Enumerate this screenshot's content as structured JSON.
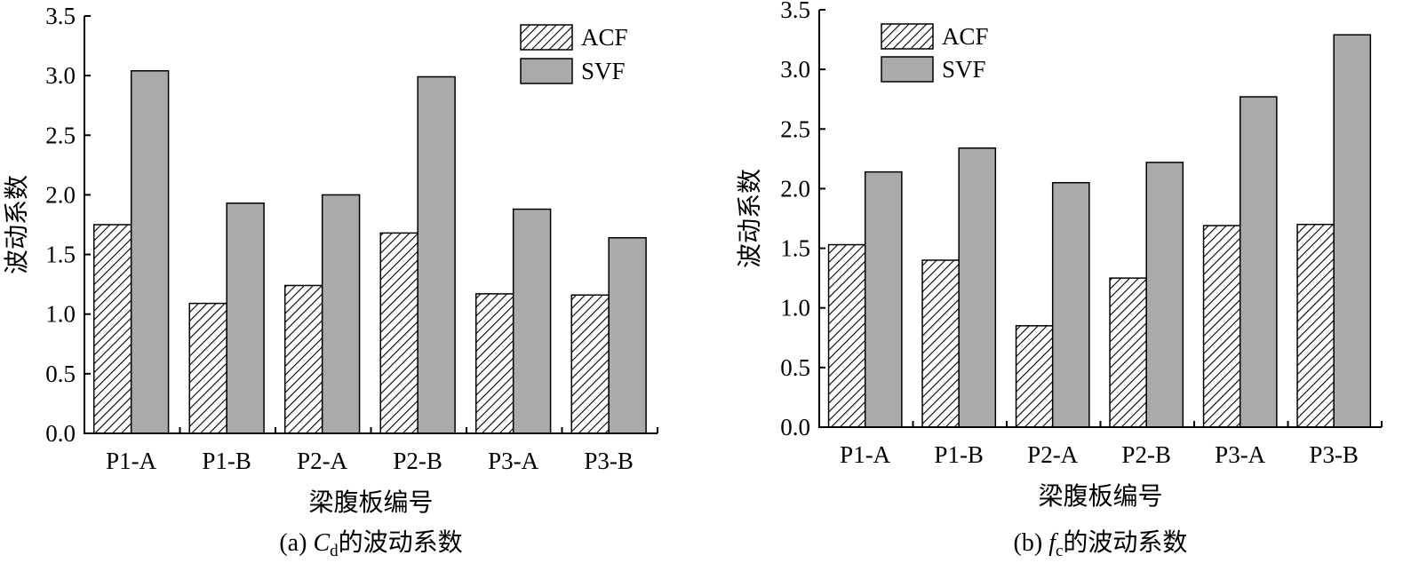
{
  "chart_data": [
    {
      "type": "bar",
      "panel": "a",
      "categories": [
        "P1-A",
        "P1-B",
        "P2-A",
        "P2-B",
        "P3-A",
        "P3-B"
      ],
      "series": [
        {
          "name": "ACF",
          "values": [
            1.75,
            1.09,
            1.24,
            1.68,
            1.17,
            1.16
          ]
        },
        {
          "name": "SVF",
          "values": [
            3.04,
            1.93,
            2.0,
            2.99,
            1.88,
            1.64
          ]
        }
      ],
      "ylim": [
        0,
        3.5
      ],
      "yticks": [
        "0.0",
        "0.5",
        "1.0",
        "1.5",
        "2.0",
        "2.5",
        "3.0",
        "3.5"
      ],
      "xlabel": "梁腹板编号",
      "ylabel": "波动系数",
      "caption": {
        "prefix": "(a) ",
        "var_main": "C",
        "var_sub": "d",
        "suffix": "的波动系数"
      },
      "legend_position": "top-right"
    },
    {
      "type": "bar",
      "panel": "b",
      "categories": [
        "P1-A",
        "P1-B",
        "P2-A",
        "P2-B",
        "P3-A",
        "P3-B"
      ],
      "series": [
        {
          "name": "ACF",
          "values": [
            1.53,
            1.4,
            0.85,
            1.25,
            1.69,
            1.7
          ]
        },
        {
          "name": "SVF",
          "values": [
            2.14,
            2.34,
            2.05,
            2.22,
            2.77,
            3.29
          ]
        }
      ],
      "ylim": [
        0,
        3.5
      ],
      "yticks": [
        "0.0",
        "0.5",
        "1.0",
        "1.5",
        "2.0",
        "2.5",
        "3.0",
        "3.5"
      ],
      "xlabel": "梁腹板编号",
      "ylabel": "波动系数",
      "caption": {
        "prefix": "(b) ",
        "var_main": "f",
        "var_sub": "c",
        "suffix": "的波动系数"
      },
      "legend_position": "top-left"
    }
  ],
  "colors": {
    "svf_fill": "#aaaaaa",
    "acf_hatch": "#000000",
    "background": "#ffffff"
  }
}
